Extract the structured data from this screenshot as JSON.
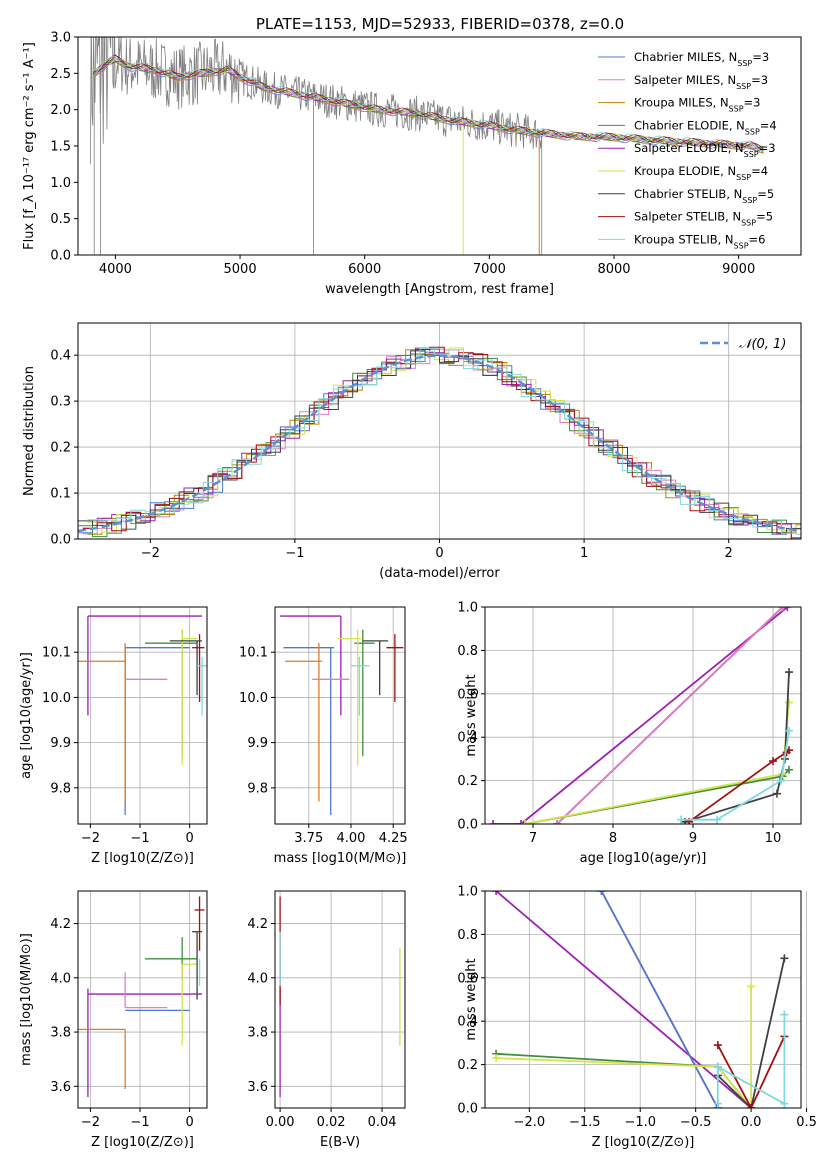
{
  "page_title": "PLATE=1153, MJD=52933, FIBERID=0378, z=0.0",
  "colors": {
    "chabrier_miles": "#4e78d6",
    "salpeter_miles": "#e37bc4",
    "kroupa_miles": "#b8860b",
    "chabrier_elodie": "#3f8f3f",
    "salpeter_elodie": "#9b1fb5",
    "kroupa_elodie": "#d6e34d",
    "chabrier_stelib": "#404040",
    "salpeter_stelib": "#a01010",
    "kroupa_stelib": "#7fd9de",
    "data": "#808080",
    "orange": "#e07a28",
    "gauss": "#5b8fd6"
  },
  "chart_data": [
    {
      "type": "line",
      "title": "PLATE=1153, MJD=52933, FIBERID=0378, z=0.0",
      "xlabel": "wavelength [Angstrom, rest frame]",
      "ylabel": "Flux [f_λ 10⁻¹⁷ erg cm⁻² s⁻¹ A⁻¹]",
      "xlim": [
        3700,
        9500
      ],
      "ylim": [
        0.0,
        3.0
      ],
      "xticks": [
        "4000",
        "5000",
        "6000",
        "7000",
        "8000",
        "9000"
      ],
      "yticks": [
        "0.0",
        "0.5",
        "1.0",
        "1.5",
        "2.0",
        "2.5",
        "3.0"
      ],
      "legend_position": "top-right",
      "legend": [
        "Chabrier MILES, N_SSP=3",
        "Salpeter MILES, N_SSP=3",
        "Kroupa MILES, N_SSP=3",
        "Chabrier ELODIE, N_SSP=4",
        "Salpeter ELODIE, N_SSP=3",
        "Kroupa ELODIE, N_SSP=4",
        "Chabrier STELIB, N_SSP=5",
        "Salpeter STELIB, N_SSP=5",
        "Kroupa STELIB, N_SSP=6"
      ],
      "model_spectrum": {
        "x": [
          3800,
          3900,
          4000,
          4100,
          4300,
          4500,
          4700,
          4900,
          5000,
          5200,
          5500,
          5800,
          6100,
          6400,
          6700,
          7000,
          7200,
          7400,
          7700,
          8000,
          8300,
          8600,
          8900,
          9100,
          9200
        ],
        "y": [
          2.45,
          2.6,
          2.7,
          2.6,
          2.55,
          2.45,
          2.5,
          2.55,
          2.45,
          2.3,
          2.2,
          2.1,
          2.0,
          1.95,
          1.85,
          1.78,
          1.72,
          1.68,
          1.63,
          1.62,
          1.58,
          1.55,
          1.52,
          1.5,
          1.45
        ]
      }
    },
    {
      "type": "line",
      "xlabel": "(data-model)/error",
      "ylabel": "Normed distribution",
      "xlim": [
        -2.5,
        2.5
      ],
      "ylim": [
        0.0,
        0.47
      ],
      "xticks": [
        "−2",
        "−1",
        "0",
        "1",
        "2"
      ],
      "yticks": [
        "0.0",
        "0.1",
        "0.2",
        "0.3",
        "0.4"
      ],
      "legend_position": "top-right",
      "legend": [
        "𝒩(0, 1)"
      ],
      "series": [
        {
          "name": "𝒩(0, 1)",
          "x": [
            -2.5,
            -2.0,
            -1.5,
            -1.0,
            -0.5,
            0.0,
            0.5,
            1.0,
            1.5,
            2.0,
            2.5
          ],
          "y": [
            0.0175,
            0.054,
            0.13,
            0.242,
            0.352,
            0.399,
            0.352,
            0.242,
            0.13,
            0.054,
            0.0175
          ]
        }
      ]
    },
    {
      "type": "scatter",
      "xlabel": "Z [log10(Z/Z⊙)]",
      "ylabel": "age  [log10(age/yr)]",
      "xlim": [
        -2.25,
        0.35
      ],
      "ylim": [
        9.72,
        10.2
      ],
      "xticks": [
        "−2",
        "−1",
        "0"
      ],
      "yticks": [
        "9.8",
        "9.9",
        "10.0",
        "10.1"
      ],
      "points": [
        {
          "model": "Salpeter ELODIE",
          "x": -2.05,
          "y": 10.18,
          "xerr": [
            0,
            2.3
          ],
          "yerr": [
            0.22,
            0
          ]
        },
        {
          "model": "Chabrier MILES",
          "x": -1.3,
          "y": 10.11,
          "xerr": [
            0,
            1.3
          ],
          "yerr": [
            0.37,
            0
          ]
        },
        {
          "model": "Kroupa MILES",
          "x": -1.3,
          "y": 10.08,
          "xerr": [
            0.95,
            0
          ],
          "yerr": [
            0.31,
            0.04
          ]
        },
        {
          "model": "Salpeter MILES",
          "x": -1.3,
          "y": 10.04,
          "xerr": [
            0,
            0.85
          ],
          "yerr": [
            0.0,
            0.0
          ]
        },
        {
          "model": "Chabrier ELODIE",
          "x": -0.15,
          "y": 10.12,
          "xerr": [
            0.75,
            0.3
          ],
          "yerr": [
            0.25,
            0.03
          ]
        },
        {
          "model": "Kroupa ELODIE",
          "x": -0.15,
          "y": 10.13,
          "xerr": [
            0,
            0.3
          ],
          "yerr": [
            0.28,
            0.02
          ]
        },
        {
          "model": "Chabrier STELIB",
          "x": 0.15,
          "y": 10.125,
          "xerr": [
            0.55,
            0.1
          ],
          "yerr": [
            0.12,
            0.0
          ]
        },
        {
          "model": "Salpeter STELIB",
          "x": 0.2,
          "y": 10.11,
          "xerr": [
            0.15,
            0.1
          ],
          "yerr": [
            0.12,
            0.03
          ]
        },
        {
          "model": "Kroupa STELIB",
          "x": 0.25,
          "y": 10.07,
          "xerr": [
            0.1,
            0.1
          ],
          "yerr": [
            0.11,
            0.02
          ]
        }
      ]
    },
    {
      "type": "scatter",
      "xlabel": "mass [log10(M/M⊙)]",
      "ylabel": "",
      "xlim": [
        3.55,
        4.32
      ],
      "ylim": [
        9.72,
        10.2
      ],
      "xticks": [
        "3.75",
        "4.00",
        "4.25"
      ],
      "yticks": [
        "9.8",
        "9.9",
        "10.0",
        "10.1"
      ],
      "points": [
        {
          "model": "Salpeter ELODIE",
          "x": 3.94,
          "y": 10.18,
          "xerr": [
            0.36,
            0
          ],
          "yerr": [
            0.22,
            0
          ]
        },
        {
          "model": "Chabrier MILES",
          "x": 3.88,
          "y": 10.11,
          "xerr": [
            0.28,
            0.02
          ],
          "yerr": [
            0.37,
            0
          ]
        },
        {
          "model": "Kroupa MILES",
          "x": 3.81,
          "y": 10.08,
          "xerr": [
            0.2,
            0.02
          ],
          "yerr": [
            0.31,
            0.04
          ]
        },
        {
          "model": "Salpeter MILES",
          "x": 3.89,
          "y": 10.04,
          "xerr": [
            0.12,
            0.1
          ],
          "yerr": [
            0.0,
            0.0
          ]
        },
        {
          "model": "Chabrier ELODIE",
          "x": 4.07,
          "y": 10.12,
          "xerr": [
            0.05,
            0.07
          ],
          "yerr": [
            0.25,
            0.03
          ]
        },
        {
          "model": "Kroupa ELODIE",
          "x": 4.04,
          "y": 10.13,
          "xerr": [
            0.12,
            0.02
          ],
          "yerr": [
            0.28,
            0.02
          ]
        },
        {
          "model": "Chabrier STELIB",
          "x": 4.17,
          "y": 10.125,
          "xerr": [
            0.1,
            0.05
          ],
          "yerr": [
            0.12,
            0.0
          ]
        },
        {
          "model": "Salpeter STELIB",
          "x": 4.26,
          "y": 10.11,
          "xerr": [
            0.05,
            0.05
          ],
          "yerr": [
            0.12,
            0.03
          ]
        },
        {
          "model": "Kroupa STELIB",
          "x": 4.05,
          "y": 10.07,
          "xerr": [
            0.05,
            0.06
          ],
          "yerr": [
            0.11,
            0.02
          ]
        }
      ]
    },
    {
      "type": "line",
      "xlabel": "age  [log10(age/yr)]",
      "ylabel": "mass weight",
      "xlim": [
        6.4,
        10.35
      ],
      "ylim": [
        0.0,
        1.0
      ],
      "xticks": [
        "7",
        "8",
        "9",
        "10"
      ],
      "yticks": [
        "0.0",
        "0.2",
        "0.4",
        "0.6",
        "0.8",
        "1.0"
      ],
      "series": [
        {
          "name": "Salpeter ELODIE",
          "x": [
            6.5,
            6.85,
            10.18
          ],
          "y": [
            0.0,
            0.0,
            1.0
          ]
        },
        {
          "name": "Kroupa MILES",
          "x": [
            7.3,
            10.12
          ],
          "y": [
            0.0,
            1.0
          ]
        },
        {
          "name": "Chabrier MILES",
          "x": [
            7.3,
            10.12
          ],
          "y": [
            0.0,
            1.0
          ]
        },
        {
          "name": "Salpeter MILES",
          "x": [
            7.3,
            10.12
          ],
          "y": [
            0.0,
            1.0
          ]
        },
        {
          "name": "Chabrier ELODIE",
          "x": [
            6.9,
            10.12,
            10.2
          ],
          "y": [
            0.0,
            0.22,
            0.25
          ]
        },
        {
          "name": "Kroupa ELODIE",
          "x": [
            6.9,
            10.12,
            10.2
          ],
          "y": [
            0.0,
            0.23,
            0.56
          ]
        },
        {
          "name": "Chabrier STELIB",
          "x": [
            8.9,
            10.05,
            10.15,
            10.2
          ],
          "y": [
            0.01,
            0.14,
            0.3,
            0.7
          ]
        },
        {
          "name": "Salpeter STELIB",
          "x": [
            8.95,
            10.0,
            10.17,
            10.2
          ],
          "y": [
            0.01,
            0.29,
            0.33,
            0.34
          ]
        },
        {
          "name": "Kroupa STELIB",
          "x": [
            8.85,
            9.3,
            10.1,
            10.2
          ],
          "y": [
            0.02,
            0.02,
            0.2,
            0.43
          ]
        }
      ]
    },
    {
      "type": "scatter",
      "xlabel": "Z [log10(Z/Z⊙)]",
      "ylabel": "mass [log10(M/M⊙)]",
      "xlim": [
        -2.25,
        0.35
      ],
      "ylim": [
        3.52,
        4.32
      ],
      "xticks": [
        "−2",
        "−1",
        "0"
      ],
      "yticks": [
        "3.6",
        "3.8",
        "4.0",
        "4.2"
      ],
      "points": [
        {
          "model": "Salpeter ELODIE",
          "x": -2.05,
          "y": 3.94,
          "xerr": [
            0,
            2.3
          ],
          "yerr": [
            0.38,
            0.02
          ]
        },
        {
          "model": "Chabrier MILES",
          "x": -1.3,
          "y": 3.88,
          "xerr": [
            0,
            1.3
          ],
          "yerr": [
            0,
            0
          ]
        },
        {
          "model": "Kroupa MILES",
          "x": -1.3,
          "y": 3.81,
          "xerr": [
            0.95,
            0
          ],
          "yerr": [
            0.22,
            0
          ]
        },
        {
          "model": "Salpeter MILES",
          "x": -1.3,
          "y": 3.89,
          "xerr": [
            0,
            0.85
          ],
          "yerr": [
            0,
            0.13
          ]
        },
        {
          "model": "Chabrier ELODIE",
          "x": -0.15,
          "y": 4.07,
          "xerr": [
            0.75,
            0.3
          ],
          "yerr": [
            0.08,
            0.08
          ]
        },
        {
          "model": "Kroupa ELODIE",
          "x": -0.15,
          "y": 4.05,
          "xerr": [
            0,
            0.3
          ],
          "yerr": [
            0.3,
            0.0
          ]
        },
        {
          "model": "Chabrier STELIB",
          "x": 0.15,
          "y": 4.17,
          "xerr": [
            0.1,
            0.1
          ],
          "yerr": [
            0.25,
            0
          ]
        },
        {
          "model": "Salpeter STELIB",
          "x": 0.2,
          "y": 4.25,
          "xerr": [
            0.1,
            0.1
          ],
          "yerr": [
            0.15,
            0.05
          ]
        },
        {
          "model": "Kroupa STELIB",
          "x": 0.2,
          "y": 4.07,
          "xerr": [
            0.0,
            0.0
          ],
          "yerr": [
            0.1,
            0.0
          ]
        }
      ]
    },
    {
      "type": "scatter",
      "xlabel": "E(B-V)",
      "ylabel": "",
      "xlim": [
        -0.002,
        0.049
      ],
      "ylim": [
        3.52,
        4.32
      ],
      "xticks": [
        "0.00",
        "0.02",
        "0.04"
      ],
      "yticks": [
        "3.6",
        "3.8",
        "4.0",
        "4.2"
      ],
      "points": [
        {
          "model": "Salpeter ELODIE",
          "x": 0.0,
          "y": 3.94,
          "yerr": [
            0.38,
            0.02
          ]
        },
        {
          "model": "Salpeter STELIB",
          "x": 0.0,
          "y": 4.25,
          "yerr": [
            0.35,
            0.05
          ]
        },
        {
          "model": "Kroupa STELIB",
          "x": 0.0,
          "y": 4.07,
          "yerr": [
            0.1,
            0.1
          ]
        },
        {
          "model": "Kroupa ELODIE",
          "x": 0.047,
          "y": 3.98,
          "yerr": [
            0.23,
            0.13
          ]
        }
      ]
    },
    {
      "type": "line",
      "xlabel": "Z [log10(Z/Z⊙)]",
      "ylabel": "mass weight",
      "xlim": [
        -2.4,
        0.45
      ],
      "ylim": [
        0.0,
        1.0
      ],
      "xticks": [
        "−2.0",
        "−1.5",
        "−1.0",
        "−0.5",
        "0.0",
        "0.5"
      ],
      "yticks": [
        "0.0",
        "0.2",
        "0.4",
        "0.6",
        "0.8",
        "1.0"
      ],
      "series": [
        {
          "name": "Salpeter ELODIE",
          "x": [
            -2.3,
            0.0
          ],
          "y": [
            1.0,
            0.0
          ]
        },
        {
          "name": "Kroupa MILES",
          "x": [
            -1.35,
            -0.3
          ],
          "y": [
            1.0,
            0.0
          ]
        },
        {
          "name": "Chabrier MILES",
          "x": [
            -1.35,
            -0.3
          ],
          "y": [
            1.0,
            0.0
          ]
        },
        {
          "name": "Chabrier ELODIE",
          "x": [
            -2.3,
            -0.3,
            0.0
          ],
          "y": [
            0.25,
            0.19,
            0.0
          ]
        },
        {
          "name": "Kroupa ELODIE",
          "x": [
            -2.3,
            -0.3,
            0.0,
            0.0
          ],
          "y": [
            0.23,
            0.19,
            0.0,
            0.56
          ]
        },
        {
          "name": "Chabrier STELIB",
          "x": [
            -0.3,
            0.0,
            0.3
          ],
          "y": [
            0.15,
            0.0,
            0.69
          ]
        },
        {
          "name": "Salpeter STELIB",
          "x": [
            -0.3,
            0.0,
            0.3
          ],
          "y": [
            0.29,
            0.0,
            0.33
          ]
        },
        {
          "name": "Kroupa STELIB",
          "x": [
            -0.3,
            -0.3,
            0.3,
            0.3
          ],
          "y": [
            0.02,
            0.19,
            0.02,
            0.43
          ]
        }
      ]
    }
  ]
}
